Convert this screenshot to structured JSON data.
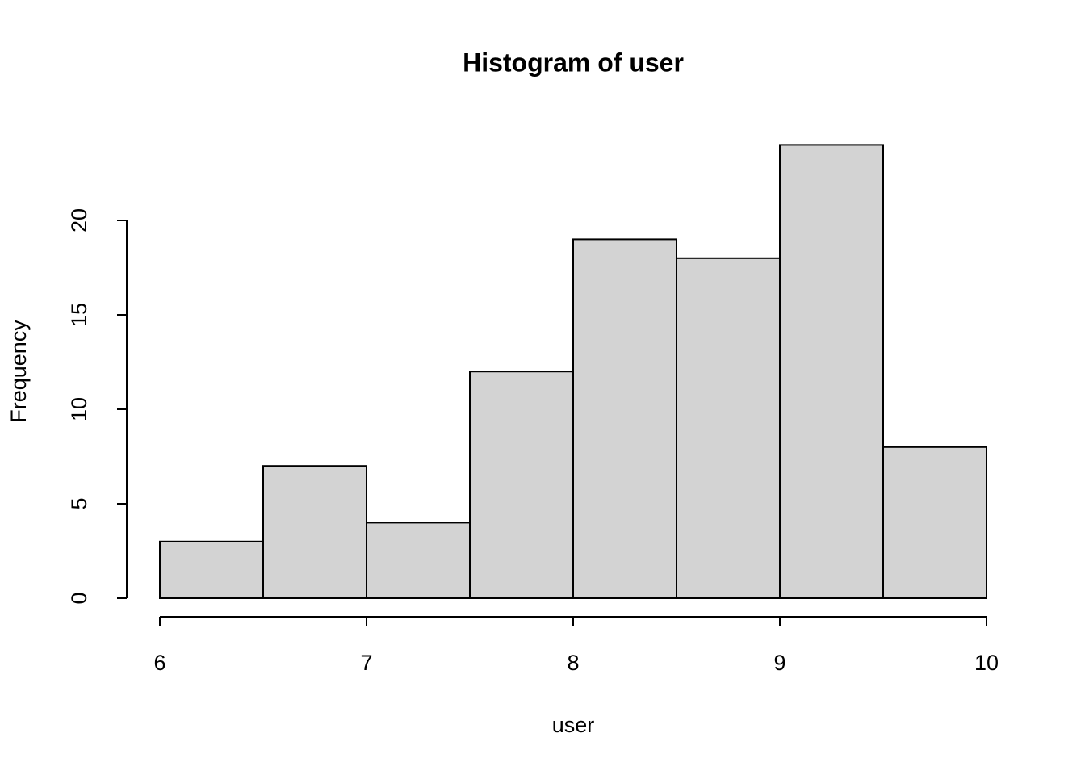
{
  "chart_data": {
    "type": "histogram",
    "title": "Histogram of user",
    "x_label": "user",
    "y_label": "Frequency",
    "bins": [
      6,
      6.5,
      7,
      7.5,
      8,
      8.5,
      9,
      9.5,
      10
    ],
    "values": [
      3,
      7,
      4,
      12,
      19,
      18,
      24,
      8
    ],
    "color": "#d3d3d3",
    "xlim": [
      6,
      10
    ],
    "ylim": [
      0,
      24
    ],
    "xticks": [
      6,
      7,
      8,
      9,
      10
    ],
    "yticks": [
      0,
      5,
      10,
      15,
      20
    ]
  }
}
